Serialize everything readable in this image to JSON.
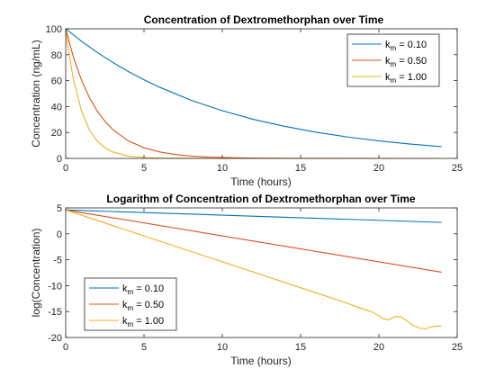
{
  "chart_data": [
    {
      "type": "line",
      "title": "Concentration of Dextromethorphan over Time",
      "xlabel": "Time (hours)",
      "ylabel": "Concentration (ng/mL)",
      "xlim": [
        0,
        25
      ],
      "ylim": [
        0,
        100
      ],
      "xticks": [
        0,
        5,
        10,
        15,
        20,
        25
      ],
      "yticks": [
        0,
        20,
        40,
        60,
        80,
        100
      ],
      "grid": false,
      "legend_position": "top-right",
      "series": [
        {
          "name": "k_m = 0.10",
          "legend_base": "k",
          "legend_sub": "m",
          "legend_rest": " = 0.10",
          "color": "#0072BD",
          "x": [
            0,
            1,
            2,
            3,
            4,
            5,
            6,
            8,
            10,
            12,
            14,
            16,
            18,
            20,
            22,
            24
          ],
          "y": [
            100,
            90.5,
            81.9,
            74.1,
            67.0,
            60.7,
            54.9,
            44.9,
            36.8,
            30.1,
            24.7,
            20.2,
            16.5,
            13.5,
            11.1,
            9.1
          ]
        },
        {
          "name": "k_m = 0.50",
          "legend_base": "k",
          "legend_sub": "m",
          "legend_rest": " = 0.50",
          "color": "#D95319",
          "x": [
            0,
            0.5,
            1,
            1.5,
            2,
            2.5,
            3,
            4,
            5,
            6,
            7,
            8,
            9,
            10,
            12,
            15,
            24
          ],
          "y": [
            100,
            77.9,
            60.7,
            47.2,
            36.8,
            28.7,
            22.3,
            13.5,
            8.2,
            5.0,
            3.0,
            1.8,
            1.1,
            0.7,
            0.2,
            0.05,
            0
          ]
        },
        {
          "name": "k_m = 1.00",
          "legend_base": "k",
          "legend_sub": "m",
          "legend_rest": " = 1.00",
          "color": "#EDB120",
          "x": [
            0,
            0.25,
            0.5,
            1,
            1.5,
            2,
            2.5,
            3,
            4,
            5,
            6,
            8,
            10,
            24
          ],
          "y": [
            100,
            77.9,
            60.7,
            36.8,
            22.3,
            13.5,
            8.2,
            5.0,
            1.8,
            0.7,
            0.25,
            0.03,
            0,
            0
          ]
        }
      ]
    },
    {
      "type": "line",
      "title": "Logarithm of Concentration of Dextromethorphan over Time",
      "xlabel": "Time (hours)",
      "ylabel": "log(Concentration)",
      "xlim": [
        0,
        25
      ],
      "ylim": [
        -20,
        5
      ],
      "xticks": [
        0,
        5,
        10,
        15,
        20,
        25
      ],
      "yticks": [
        -20,
        -15,
        -10,
        -5,
        0,
        5
      ],
      "grid": false,
      "legend_position": "bottom-left",
      "series": [
        {
          "name": "k_m = 0.10",
          "legend_base": "k",
          "legend_sub": "m",
          "legend_rest": " = 0.10",
          "color": "#0072BD",
          "x": [
            0,
            24
          ],
          "y": [
            4.6,
            2.2
          ]
        },
        {
          "name": "k_m = 0.50",
          "legend_base": "k",
          "legend_sub": "m",
          "legend_rest": " = 0.50",
          "color": "#D95319",
          "x": [
            0,
            24
          ],
          "y": [
            4.6,
            -7.4
          ]
        },
        {
          "name": "k_m = 1.00",
          "legend_base": "k",
          "legend_sub": "m",
          "legend_rest": " = 1.00",
          "color": "#EDB120",
          "x": [
            0,
            5,
            10,
            15,
            18,
            18.5,
            19,
            19.5,
            20,
            20.3,
            20.6,
            21,
            21.4,
            21.8,
            22.2,
            22.6,
            23,
            23.4,
            23.8,
            24
          ],
          "y": [
            4.6,
            -0.4,
            -5.4,
            -10.4,
            -13.4,
            -14.0,
            -14.5,
            -15.0,
            -15.8,
            -16.4,
            -16.6,
            -16.0,
            -16.0,
            -16.8,
            -17.7,
            -18.2,
            -18.3,
            -17.9,
            -17.8,
            -17.8
          ]
        }
      ]
    }
  ]
}
